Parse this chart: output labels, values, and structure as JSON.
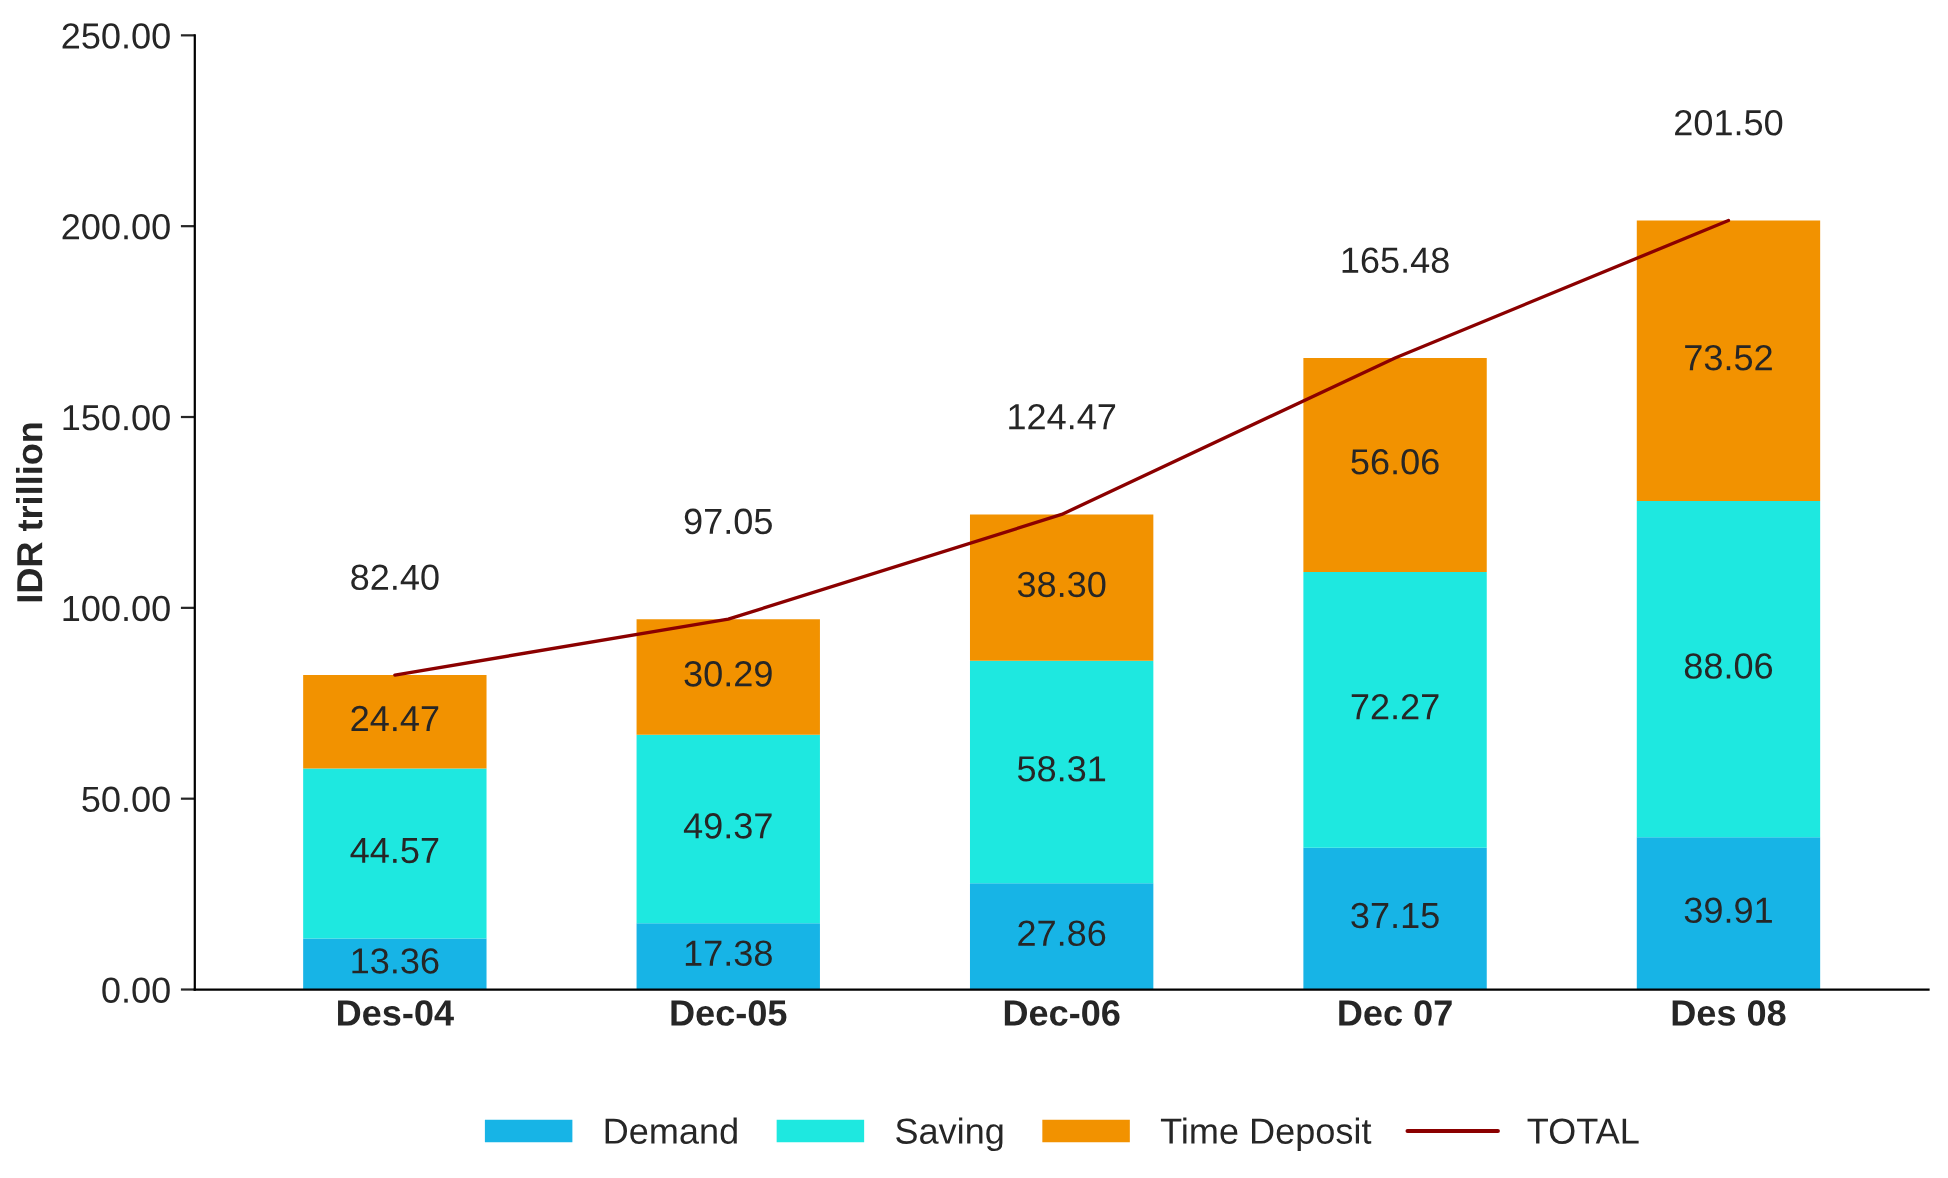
{
  "chart_data": {
    "type": "bar",
    "stacked": true,
    "categories": [
      "Des-04",
      "Dec-05",
      "Dec-06",
      "Dec 07",
      "Des 08"
    ],
    "ylabel": "IDR trillion",
    "series": [
      {
        "name": "Demand",
        "color": "#17b4e6",
        "values": [
          13.36,
          17.38,
          27.86,
          37.15,
          39.91
        ],
        "value_labels": [
          "13.36",
          "17.38",
          "27.86",
          "37.15",
          "39.91"
        ]
      },
      {
        "name": "Saving",
        "color": "#1ee8e0",
        "values": [
          44.57,
          49.37,
          58.31,
          72.27,
          88.06
        ],
        "value_labels": [
          "44.57",
          "49.37",
          "58.31",
          "72.27",
          "88.06"
        ]
      },
      {
        "name": "Time Deposit",
        "color": "#f29200",
        "values": [
          24.47,
          30.29,
          38.3,
          56.06,
          73.52
        ],
        "value_labels": [
          "24.47",
          "30.29",
          "38.30",
          "56.06",
          "73.52"
        ]
      },
      {
        "name": "TOTAL",
        "type": "line",
        "color": "#8b0000",
        "values": [
          82.4,
          97.05,
          124.47,
          165.48,
          201.5
        ],
        "value_labels": [
          "82.40",
          "97.05",
          "124.47",
          "165.48",
          "201.50"
        ]
      }
    ],
    "ylim": [
      0,
      250
    ],
    "yticks": [
      {
        "value": 0,
        "label": "0.00"
      },
      {
        "value": 50,
        "label": "50.00"
      },
      {
        "value": 100,
        "label": "100.00"
      },
      {
        "value": 150,
        "label": "150.00"
      },
      {
        "value": 200,
        "label": "200.00"
      },
      {
        "value": 250,
        "label": "250.00"
      }
    ],
    "grid": false,
    "legend": "bottom",
    "marker": "none",
    "line_style": "solid"
  }
}
